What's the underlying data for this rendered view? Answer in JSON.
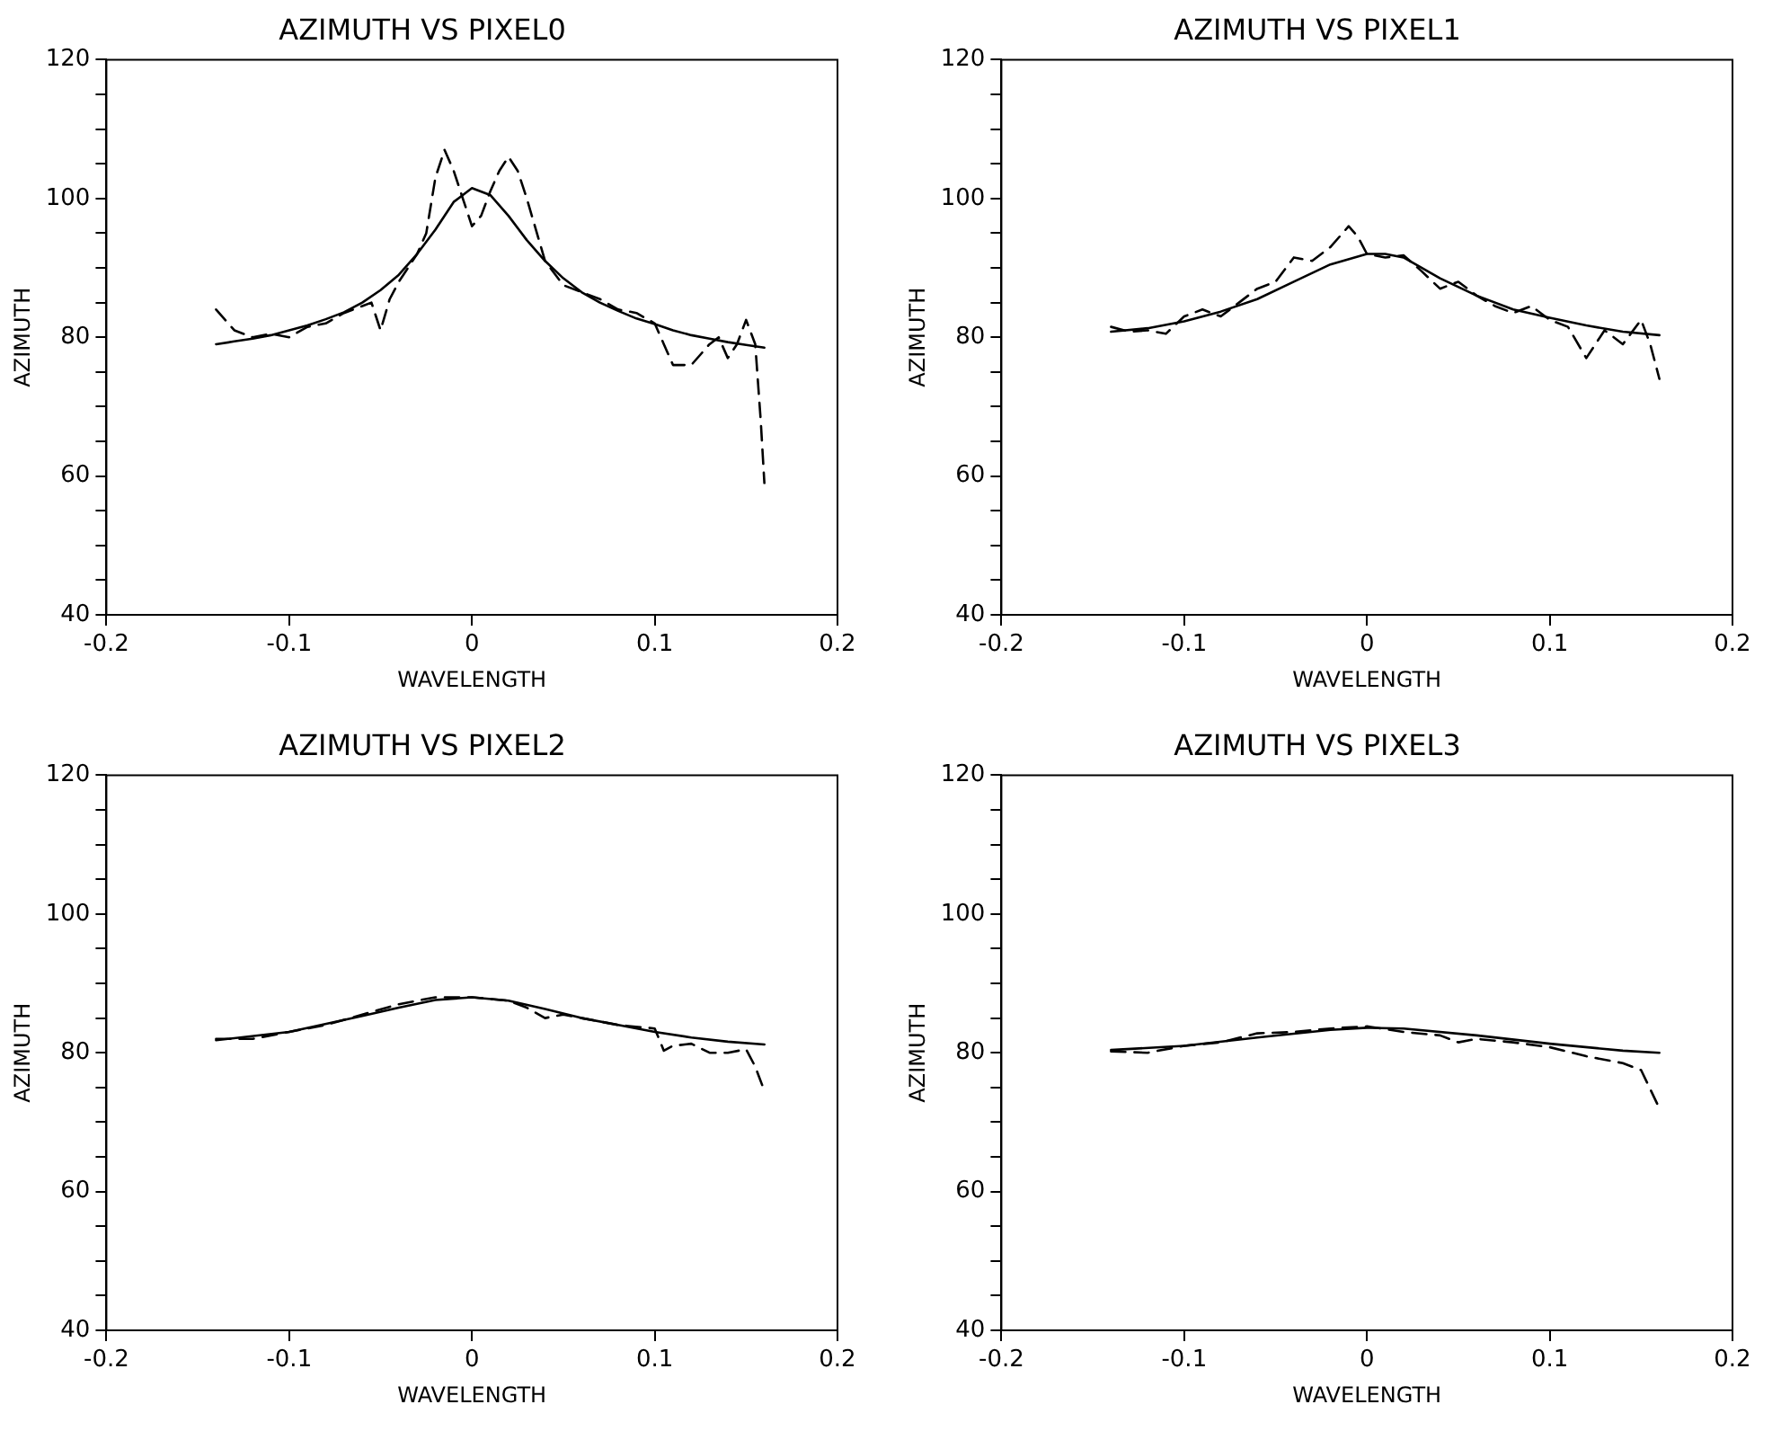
{
  "chart_data": [
    {
      "type": "line",
      "title": "AZIMUTH VS PIXEL0",
      "xlabel": "WAVELENGTH",
      "ylabel": "AZIMUTH",
      "xlim": [
        -0.2,
        0.2
      ],
      "xticks": [
        -0.2,
        -0.1,
        0.0,
        0.1,
        0.2
      ],
      "ylim": [
        40,
        120
      ],
      "yticks": [
        40,
        {
          "value": 45,
          "label": null
        },
        {
          "value": 50,
          "label": null
        },
        {
          "value": 55,
          "label": null
        },
        60,
        {
          "value": 65,
          "label": null
        },
        {
          "value": 70,
          "label": null
        },
        {
          "value": 75,
          "label": null
        },
        80,
        {
          "value": 85,
          "label": null
        },
        {
          "value": 90,
          "label": null
        },
        {
          "value": 95,
          "label": null
        },
        100,
        {
          "value": 105,
          "label": null
        },
        {
          "value": 110,
          "label": null
        },
        {
          "value": 115,
          "label": null
        },
        120
      ],
      "grid": false,
      "legend": false,
      "marker": "none",
      "series": [
        {
          "color": "#000000",
          "line_style": "dashed",
          "x": [
            -0.14,
            -0.13,
            -0.12,
            -0.11,
            -0.1,
            -0.09,
            -0.08,
            -0.07,
            -0.06,
            -0.055,
            -0.05,
            -0.045,
            -0.04,
            -0.03,
            -0.025,
            -0.02,
            -0.015,
            -0.01,
            -0.005,
            0.0,
            0.005,
            0.01,
            0.015,
            0.02,
            0.025,
            0.03,
            0.04,
            0.05,
            0.06,
            0.07,
            0.08,
            0.09,
            0.1,
            0.105,
            0.11,
            0.12,
            0.13,
            0.135,
            0.14,
            0.145,
            0.15,
            0.155,
            0.158,
            0.16
          ],
          "values": [
            84,
            81,
            80,
            80.5,
            80,
            81.5,
            82,
            83.5,
            84.5,
            85,
            81,
            85.5,
            88,
            92,
            95,
            103,
            107,
            104,
            100,
            96,
            97.5,
            101,
            104,
            106,
            104,
            100,
            91,
            87.5,
            86.5,
            85.5,
            84,
            83.5,
            82,
            79,
            76,
            76,
            79,
            80,
            77,
            79,
            82.5,
            79,
            68,
            59
          ]
        },
        {
          "color": "#000000",
          "line_style": "solid",
          "x": [
            -0.14,
            -0.13,
            -0.12,
            -0.11,
            -0.1,
            -0.09,
            -0.08,
            -0.07,
            -0.06,
            -0.05,
            -0.04,
            -0.03,
            -0.02,
            -0.01,
            0.0,
            0.01,
            0.02,
            0.03,
            0.04,
            0.05,
            0.06,
            0.07,
            0.08,
            0.09,
            0.1,
            0.11,
            0.12,
            0.13,
            0.14,
            0.15,
            0.16
          ],
          "values": [
            79,
            79.4,
            79.8,
            80.3,
            81,
            81.7,
            82.6,
            83.6,
            85,
            86.8,
            89,
            92,
            95.5,
            99.5,
            101.5,
            100.5,
            97.5,
            94,
            91,
            88.5,
            86.5,
            85,
            83.8,
            82.7,
            81.9,
            81,
            80.3,
            79.8,
            79.3,
            78.9,
            78.5
          ]
        }
      ]
    },
    {
      "type": "line",
      "title": "AZIMUTH VS PIXEL1",
      "xlabel": "WAVELENGTH",
      "ylabel": "AZIMUTH",
      "xlim": [
        -0.2,
        0.2
      ],
      "xticks": [
        -0.2,
        -0.1,
        0.0,
        0.1,
        0.2
      ],
      "ylim": [
        40,
        120
      ],
      "yticks": [
        40,
        {
          "value": 45,
          "label": null
        },
        {
          "value": 50,
          "label": null
        },
        {
          "value": 55,
          "label": null
        },
        60,
        {
          "value": 65,
          "label": null
        },
        {
          "value": 70,
          "label": null
        },
        {
          "value": 75,
          "label": null
        },
        80,
        {
          "value": 85,
          "label": null
        },
        {
          "value": 90,
          "label": null
        },
        {
          "value": 95,
          "label": null
        },
        100,
        {
          "value": 105,
          "label": null
        },
        {
          "value": 110,
          "label": null
        },
        {
          "value": 115,
          "label": null
        },
        120
      ],
      "grid": false,
      "legend": false,
      "marker": "none",
      "series": [
        {
          "color": "#000000",
          "line_style": "dashed",
          "x": [
            -0.14,
            -0.13,
            -0.12,
            -0.11,
            -0.1,
            -0.09,
            -0.08,
            -0.07,
            -0.06,
            -0.05,
            -0.04,
            -0.03,
            -0.02,
            -0.01,
            -0.005,
            0.0,
            0.01,
            0.02,
            0.03,
            0.04,
            0.05,
            0.06,
            0.07,
            0.08,
            0.09,
            0.1,
            0.11,
            0.12,
            0.13,
            0.14,
            0.15,
            0.155,
            0.16
          ],
          "values": [
            81.5,
            80.8,
            81,
            80.5,
            83,
            84,
            83,
            85,
            87,
            88,
            91.5,
            91,
            93,
            96,
            94.5,
            92,
            91.5,
            91.8,
            89.5,
            87,
            88,
            86,
            84.5,
            83.5,
            84.5,
            82.5,
            81.5,
            77,
            81,
            79,
            82.5,
            79,
            74
          ]
        },
        {
          "color": "#000000",
          "line_style": "solid",
          "x": [
            -0.14,
            -0.12,
            -0.1,
            -0.08,
            -0.06,
            -0.04,
            -0.02,
            0.0,
            0.01,
            0.02,
            0.04,
            0.06,
            0.08,
            0.1,
            0.12,
            0.14,
            0.16
          ],
          "values": [
            80.8,
            81.3,
            82.3,
            83.7,
            85.5,
            88,
            90.5,
            92,
            92,
            91.5,
            88.5,
            86,
            84,
            82.8,
            81.7,
            80.8,
            80.3
          ]
        }
      ]
    },
    {
      "type": "line",
      "title": "AZIMUTH VS PIXEL2",
      "xlabel": "WAVELENGTH",
      "ylabel": "AZIMUTH",
      "xlim": [
        -0.2,
        0.2
      ],
      "xticks": [
        -0.2,
        -0.1,
        0.0,
        0.1,
        0.2
      ],
      "ylim": [
        40,
        120
      ],
      "yticks": [
        40,
        {
          "value": 45,
          "label": null
        },
        {
          "value": 50,
          "label": null
        },
        {
          "value": 55,
          "label": null
        },
        60,
        {
          "value": 65,
          "label": null
        },
        {
          "value": 70,
          "label": null
        },
        {
          "value": 75,
          "label": null
        },
        80,
        {
          "value": 85,
          "label": null
        },
        {
          "value": 90,
          "label": null
        },
        {
          "value": 95,
          "label": null
        },
        100,
        {
          "value": 105,
          "label": null
        },
        {
          "value": 110,
          "label": null
        },
        {
          "value": 115,
          "label": null
        },
        120
      ],
      "grid": false,
      "legend": false,
      "marker": "none",
      "series": [
        {
          "color": "#000000",
          "line_style": "dashed",
          "x": [
            -0.14,
            -0.12,
            -0.1,
            -0.08,
            -0.06,
            -0.04,
            -0.02,
            0.0,
            0.02,
            0.03,
            0.04,
            0.05,
            0.06,
            0.08,
            0.1,
            0.105,
            0.11,
            0.12,
            0.13,
            0.14,
            0.15,
            0.155,
            0.16
          ],
          "values": [
            82,
            82,
            83,
            84,
            85.5,
            87,
            88,
            88,
            87.5,
            86.5,
            85,
            85.5,
            85,
            84,
            83.5,
            80.3,
            81,
            81.3,
            80,
            80,
            80.5,
            78,
            74.5
          ]
        },
        {
          "color": "#000000",
          "line_style": "solid",
          "x": [
            -0.14,
            -0.1,
            -0.06,
            -0.04,
            -0.02,
            0.0,
            0.02,
            0.04,
            0.06,
            0.08,
            0.1,
            0.12,
            0.14,
            0.16
          ],
          "values": [
            81.8,
            83,
            85.3,
            86.5,
            87.6,
            88,
            87.5,
            86.3,
            85,
            84,
            83,
            82.2,
            81.6,
            81.2
          ]
        }
      ]
    },
    {
      "type": "line",
      "title": "AZIMUTH VS PIXEL3",
      "xlabel": "WAVELENGTH",
      "ylabel": "AZIMUTH",
      "xlim": [
        -0.2,
        0.2
      ],
      "xticks": [
        -0.2,
        -0.1,
        0.0,
        0.1,
        0.2
      ],
      "ylim": [
        40,
        120
      ],
      "yticks": [
        40,
        {
          "value": 45,
          "label": null
        },
        {
          "value": 50,
          "label": null
        },
        {
          "value": 55,
          "label": null
        },
        60,
        {
          "value": 65,
          "label": null
        },
        {
          "value": 70,
          "label": null
        },
        {
          "value": 75,
          "label": null
        },
        80,
        {
          "value": 85,
          "label": null
        },
        {
          "value": 90,
          "label": null
        },
        {
          "value": 95,
          "label": null
        },
        100,
        {
          "value": 105,
          "label": null
        },
        {
          "value": 110,
          "label": null
        },
        {
          "value": 115,
          "label": null
        },
        120
      ],
      "grid": false,
      "legend": false,
      "marker": "none",
      "series": [
        {
          "color": "#000000",
          "line_style": "dashed",
          "x": [
            -0.14,
            -0.12,
            -0.1,
            -0.08,
            -0.06,
            -0.04,
            -0.02,
            0.0,
            0.02,
            0.04,
            0.05,
            0.06,
            0.08,
            0.1,
            0.12,
            0.14,
            0.15,
            0.16
          ],
          "values": [
            80.2,
            80,
            81,
            81.5,
            82.8,
            83,
            83.5,
            83.8,
            83,
            82.5,
            81.5,
            82,
            81.5,
            80.8,
            79.5,
            78.5,
            77.5,
            72
          ]
        },
        {
          "color": "#000000",
          "line_style": "solid",
          "x": [
            -0.14,
            -0.1,
            -0.06,
            -0.02,
            0.0,
            0.02,
            0.06,
            0.1,
            0.14,
            0.16
          ],
          "values": [
            80.4,
            81,
            82.2,
            83.3,
            83.6,
            83.5,
            82.5,
            81.3,
            80.3,
            80
          ]
        }
      ]
    }
  ]
}
